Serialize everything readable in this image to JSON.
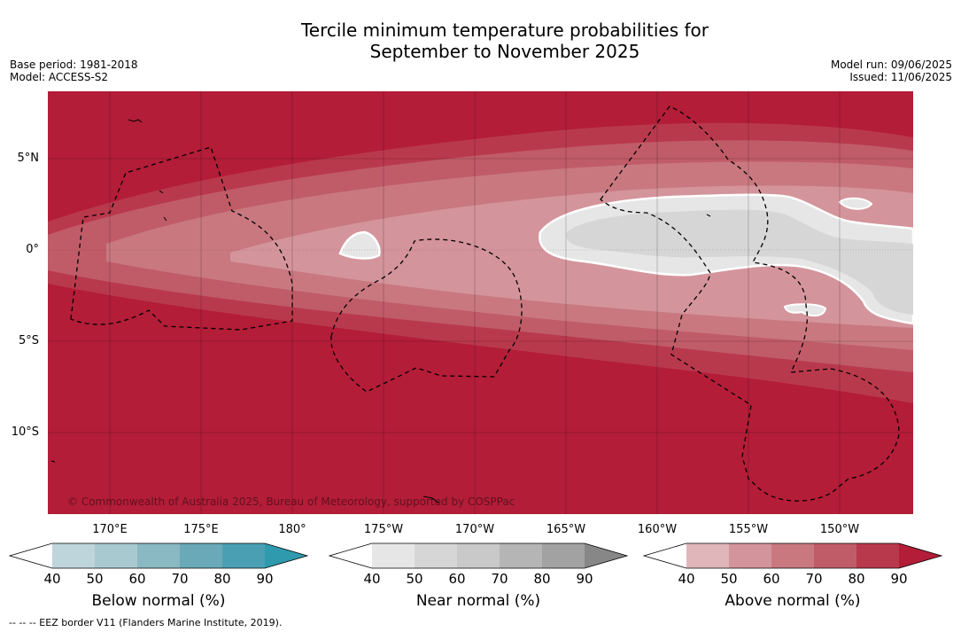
{
  "title_line1": "Tercile minimum temperature probabilities for",
  "title_line2": "September to November 2025",
  "meta_left": {
    "base_period": "Base period: 1981-2018",
    "model": "Model: ACCESS-S2"
  },
  "meta_right": {
    "model_run": "Model run: 09/06/2025",
    "issued": "Issued: 11/06/2025"
  },
  "lat_labels": [
    "5°N",
    "0°",
    "5°S",
    "10°S"
  ],
  "lon_labels": [
    "170°E",
    "175°E",
    "180°",
    "175°W",
    "170°W",
    "165°W",
    "160°W",
    "155°W",
    "150°W"
  ],
  "copyright": "© Commonwealth of Australia 2025, Bureau of Meteorology, supported by COSPPac",
  "colorbars": [
    {
      "title": "Below normal (%)",
      "ticks": [
        "40",
        "50",
        "60",
        "70",
        "80",
        "90"
      ],
      "colors": [
        "#bfd5dc",
        "#a8c9d0",
        "#8ab8c3",
        "#6aa9b7",
        "#4aa0b2",
        "#2f9aae"
      ]
    },
    {
      "title": "Near normal (%)",
      "ticks": [
        "40",
        "50",
        "60",
        "70",
        "80",
        "90"
      ],
      "colors": [
        "#e6e6e6",
        "#d6d6d6",
        "#c9c9c9",
        "#b5b5b5",
        "#a2a2a2",
        "#878787"
      ]
    },
    {
      "title": "Above normal (%)",
      "ticks": [
        "40",
        "50",
        "60",
        "70",
        "80",
        "90"
      ],
      "colors": [
        "#e0b6bb",
        "#d4949b",
        "#c97880",
        "#c05c68",
        "#b9394c",
        "#b31d38"
      ]
    }
  ],
  "colors": {
    "above90": "#b31d38",
    "above80": "#b9394c",
    "above70": "#c05c68",
    "above60": "#c97880",
    "above50": "#d4949b",
    "near40": "#e6e6e6",
    "near50": "#d6d6d6"
  },
  "footnote": "--  --  -- EEZ border V11 (Flanders Marine Institute, 2019)."
}
